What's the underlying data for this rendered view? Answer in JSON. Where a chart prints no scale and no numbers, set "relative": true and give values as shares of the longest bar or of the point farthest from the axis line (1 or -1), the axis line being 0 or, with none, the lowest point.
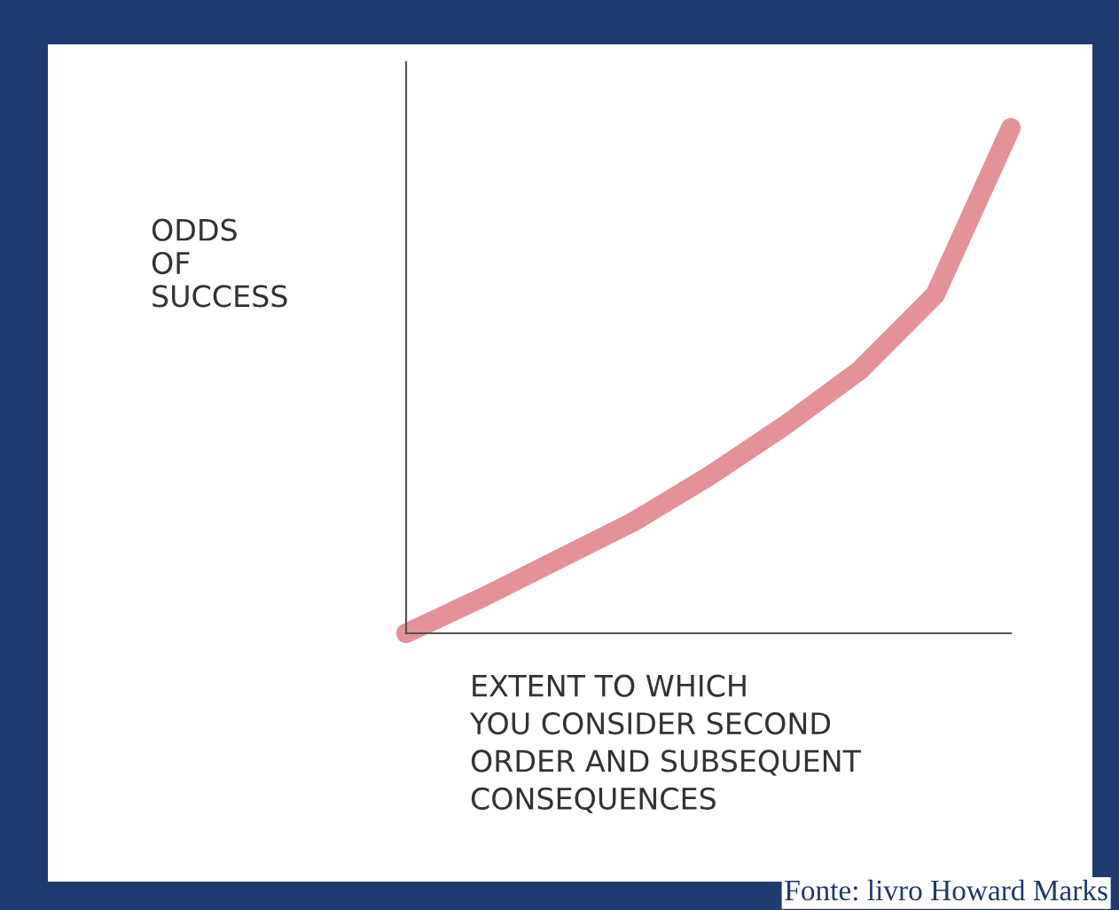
{
  "chart_data": {
    "type": "line",
    "relative": true,
    "xlabel": "EXTENT TO WHICH\nYOU CONSIDER SECOND\nORDER AND SUBSEQUENT\nCONSEQUENCES",
    "ylabel": "ODDS\nOF\nSUCCESS",
    "annotations": [
      "Fonte: livro Howard Marks"
    ],
    "categories": [
      null,
      null,
      null,
      null,
      null,
      null,
      null,
      null,
      null
    ],
    "series": [
      {
        "color": "#e0868c",
        "values": [
          0,
          0.07,
          0.145,
          0.22,
          0.31,
          0.41,
          0.52,
          0.67,
          1.0
        ]
      }
    ],
    "grid": false,
    "marker": "none",
    "line_style": "solid"
  }
}
